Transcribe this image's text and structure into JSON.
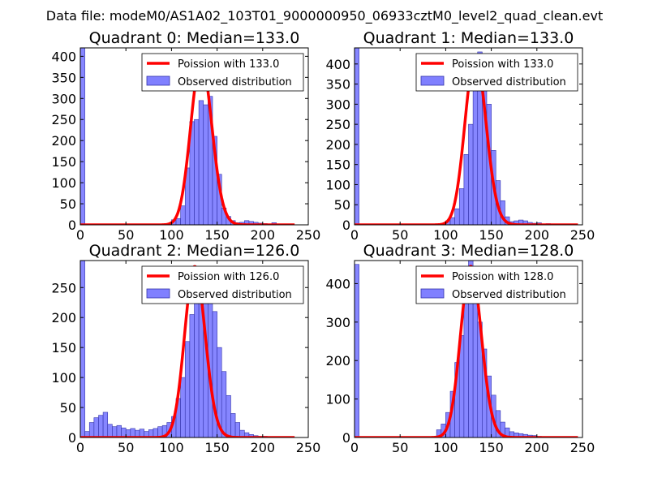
{
  "figure": {
    "suptitle": "Data file: modeM0/AS1A02_103T01_9000000950_06933cztM0_level2_quad_clean.evt"
  },
  "colors": {
    "bar_fill": "#8080ff",
    "bar_edge": "#3333aa",
    "poisson_line": "#ff0000",
    "axis": "#000000",
    "legend_edge": "#000000"
  },
  "chart_data": [
    {
      "type": "bar",
      "title": "Quadrant 0: Median=133.0",
      "xlabel": "",
      "ylabel": "",
      "xlim": [
        0,
        250
      ],
      "ylim": [
        0,
        420
      ],
      "xticks": [
        0,
        50,
        100,
        150,
        200,
        250
      ],
      "yticks": [
        0,
        50,
        100,
        150,
        200,
        250,
        300,
        350,
        400
      ],
      "grid": false,
      "legend_position": "top-right",
      "bin_width": 5,
      "bins_left": [
        0,
        90,
        95,
        100,
        105,
        110,
        115,
        120,
        125,
        130,
        135,
        140,
        145,
        150,
        155,
        160,
        165,
        170,
        175,
        180,
        185,
        190,
        195,
        200,
        205,
        210
      ],
      "counts": [
        420,
        0,
        0,
        12,
        15,
        45,
        135,
        245,
        250,
        295,
        285,
        305,
        210,
        120,
        40,
        20,
        10,
        5,
        6,
        10,
        8,
        6,
        4,
        3,
        0,
        5
      ],
      "series": [
        {
          "name": "Poission with 133.0",
          "kind": "line",
          "mean": 133.0,
          "x_range": [
            0,
            235
          ],
          "peak": 390
        },
        {
          "name": "Observed distribution",
          "kind": "histogram"
        }
      ]
    },
    {
      "type": "bar",
      "title": "Quadrant 1: Median=133.0",
      "xlabel": "",
      "ylabel": "",
      "xlim": [
        0,
        250
      ],
      "ylim": [
        0,
        440
      ],
      "xticks": [
        0,
        50,
        100,
        150,
        200,
        250
      ],
      "yticks": [
        0,
        50,
        100,
        150,
        200,
        250,
        300,
        350,
        400
      ],
      "grid": false,
      "legend_position": "top-right",
      "bin_width": 5,
      "bins_left": [
        0,
        90,
        95,
        100,
        105,
        110,
        115,
        120,
        125,
        130,
        135,
        140,
        145,
        150,
        155,
        160,
        165,
        170,
        175,
        180,
        185,
        190,
        195,
        200,
        205,
        210
      ],
      "counts": [
        440,
        0,
        0,
        10,
        18,
        40,
        90,
        175,
        250,
        360,
        430,
        390,
        300,
        185,
        110,
        60,
        20,
        8,
        10,
        12,
        10,
        6,
        4,
        5,
        0,
        3
      ],
      "series": [
        {
          "name": "Poission with 133.0",
          "kind": "line",
          "mean": 133.0,
          "x_range": [
            0,
            245
          ],
          "peak": 420
        },
        {
          "name": "Observed distribution",
          "kind": "histogram"
        }
      ]
    },
    {
      "type": "bar",
      "title": "Quadrant 2: Median=126.0",
      "xlabel": "",
      "ylabel": "",
      "xlim": [
        0,
        250
      ],
      "ylim": [
        0,
        295
      ],
      "xticks": [
        0,
        50,
        100,
        150,
        200,
        250
      ],
      "yticks": [
        0,
        50,
        100,
        150,
        200,
        250
      ],
      "grid": false,
      "legend_position": "top-right",
      "bin_width": 5,
      "bins_left": [
        0,
        5,
        10,
        15,
        20,
        25,
        30,
        35,
        40,
        45,
        50,
        55,
        60,
        65,
        70,
        75,
        80,
        85,
        90,
        95,
        100,
        105,
        110,
        115,
        120,
        125,
        130,
        135,
        140,
        145,
        150,
        155,
        160,
        165,
        170,
        175,
        180,
        185,
        190,
        195,
        200
      ],
      "counts": [
        295,
        10,
        25,
        33,
        37,
        42,
        22,
        18,
        20,
        16,
        13,
        15,
        12,
        14,
        10,
        13,
        15,
        18,
        20,
        25,
        35,
        65,
        100,
        160,
        205,
        240,
        270,
        280,
        250,
        210,
        150,
        110,
        70,
        40,
        25,
        12,
        8,
        5,
        3,
        2,
        2
      ],
      "series": [
        {
          "name": "Poission with 126.0",
          "kind": "line",
          "mean": 126.0,
          "x_range": [
            0,
            235
          ],
          "peak": 285
        },
        {
          "name": "Observed distribution",
          "kind": "histogram"
        }
      ]
    },
    {
      "type": "bar",
      "title": "Quadrant 3: Median=128.0",
      "xlabel": "",
      "ylabel": "",
      "xlim": [
        0,
        250
      ],
      "ylim": [
        0,
        460
      ],
      "xticks": [
        0,
        50,
        100,
        150,
        200,
        250
      ],
      "yticks": [
        0,
        100,
        200,
        300,
        400
      ],
      "grid": false,
      "legend_position": "top-right",
      "bin_width": 5,
      "bins_left": [
        0,
        85,
        90,
        95,
        100,
        105,
        110,
        115,
        120,
        125,
        130,
        135,
        140,
        145,
        150,
        155,
        160,
        165,
        170,
        175,
        180,
        185,
        190,
        195,
        200
      ],
      "counts": [
        450,
        0,
        20,
        35,
        65,
        120,
        195,
        265,
        370,
        460,
        390,
        300,
        230,
        160,
        110,
        70,
        40,
        25,
        15,
        12,
        10,
        8,
        6,
        5,
        3
      ],
      "series": [
        {
          "name": "Poission with 128.0",
          "kind": "line",
          "mean": 128.0,
          "x_range": [
            0,
            245
          ],
          "peak": 445
        },
        {
          "name": "Observed distribution",
          "kind": "histogram"
        }
      ]
    }
  ]
}
